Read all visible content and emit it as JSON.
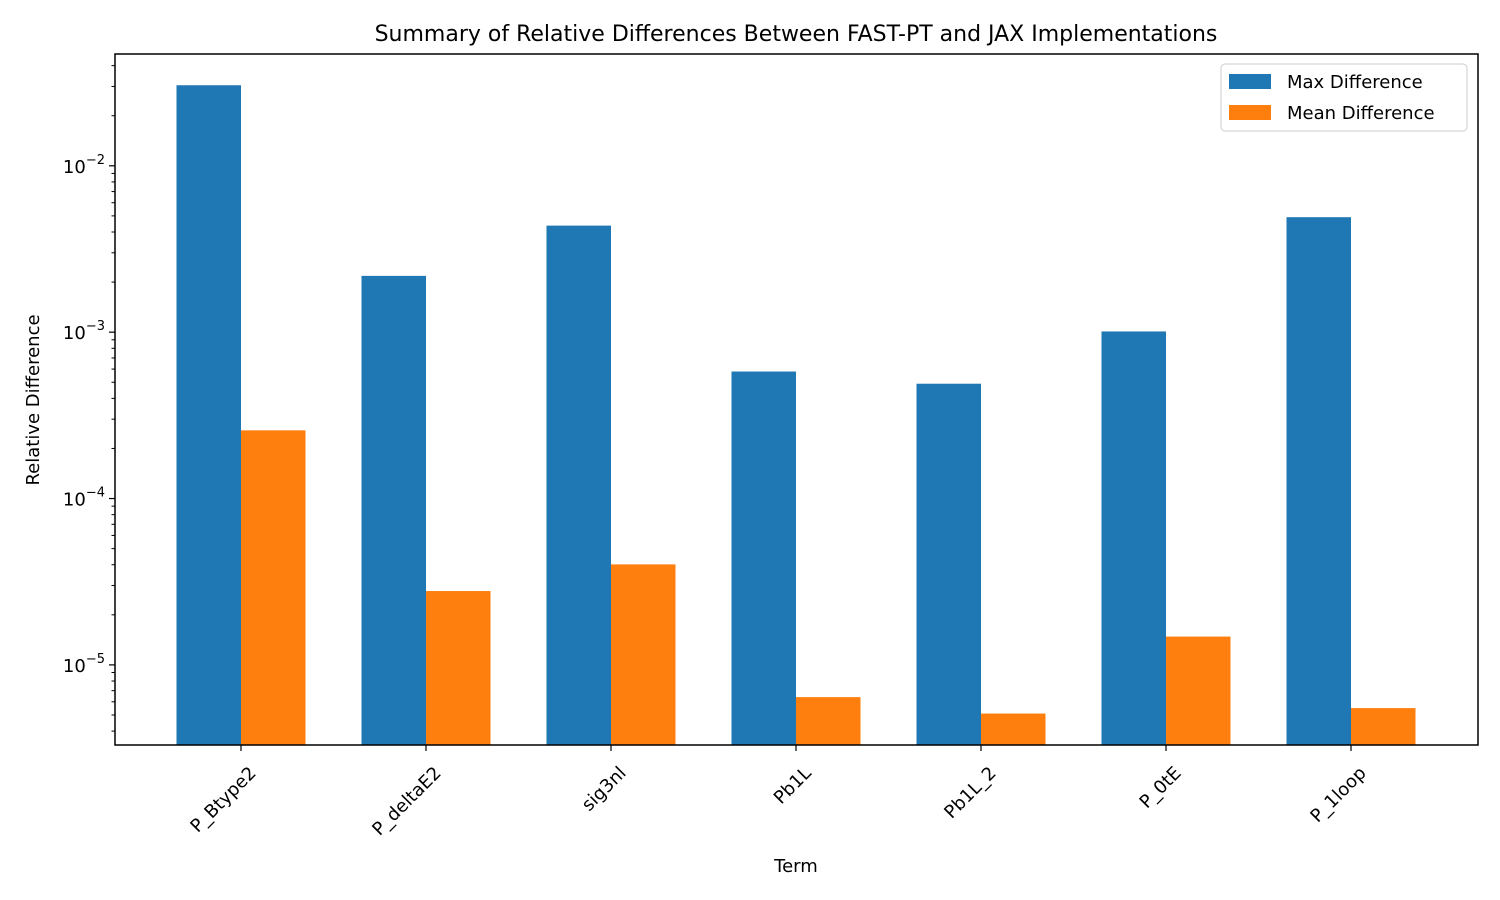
{
  "chart_data": {
    "type": "bar",
    "title": "Summary of Relative Differences Between FAST-PT and JAX Implementations",
    "xlabel": "Term",
    "ylabel": "Relative Difference",
    "yscale": "log",
    "ylim": [
      3.3e-06,
      0.047
    ],
    "grid": false,
    "legend_position": "top-right",
    "categories": [
      "P_Btype2",
      "P_deltaE2",
      "sig3nl",
      "Pb1L",
      "Pb1L_2",
      "P_0tE",
      "P_1loop"
    ],
    "series": [
      {
        "name": "Max Difference",
        "color": "#1f77b4",
        "values": [
          0.0305,
          0.00218,
          0.00437,
          0.00058,
          0.00049,
          0.00101,
          0.00491
        ]
      },
      {
        "name": "Mean Difference",
        "color": "#ff7f0e",
        "values": [
          0.000257,
          2.78e-05,
          4.02e-05,
          6.4e-06,
          5.1e-06,
          1.48e-05,
          5.5e-06
        ]
      }
    ],
    "yticks": [
      {
        "value": 1e-05,
        "base": "10",
        "exp": "−5"
      },
      {
        "value": 0.0001,
        "base": "10",
        "exp": "−4"
      },
      {
        "value": 0.001,
        "base": "10",
        "exp": "−3"
      },
      {
        "value": 0.01,
        "base": "10",
        "exp": "−2"
      }
    ]
  }
}
